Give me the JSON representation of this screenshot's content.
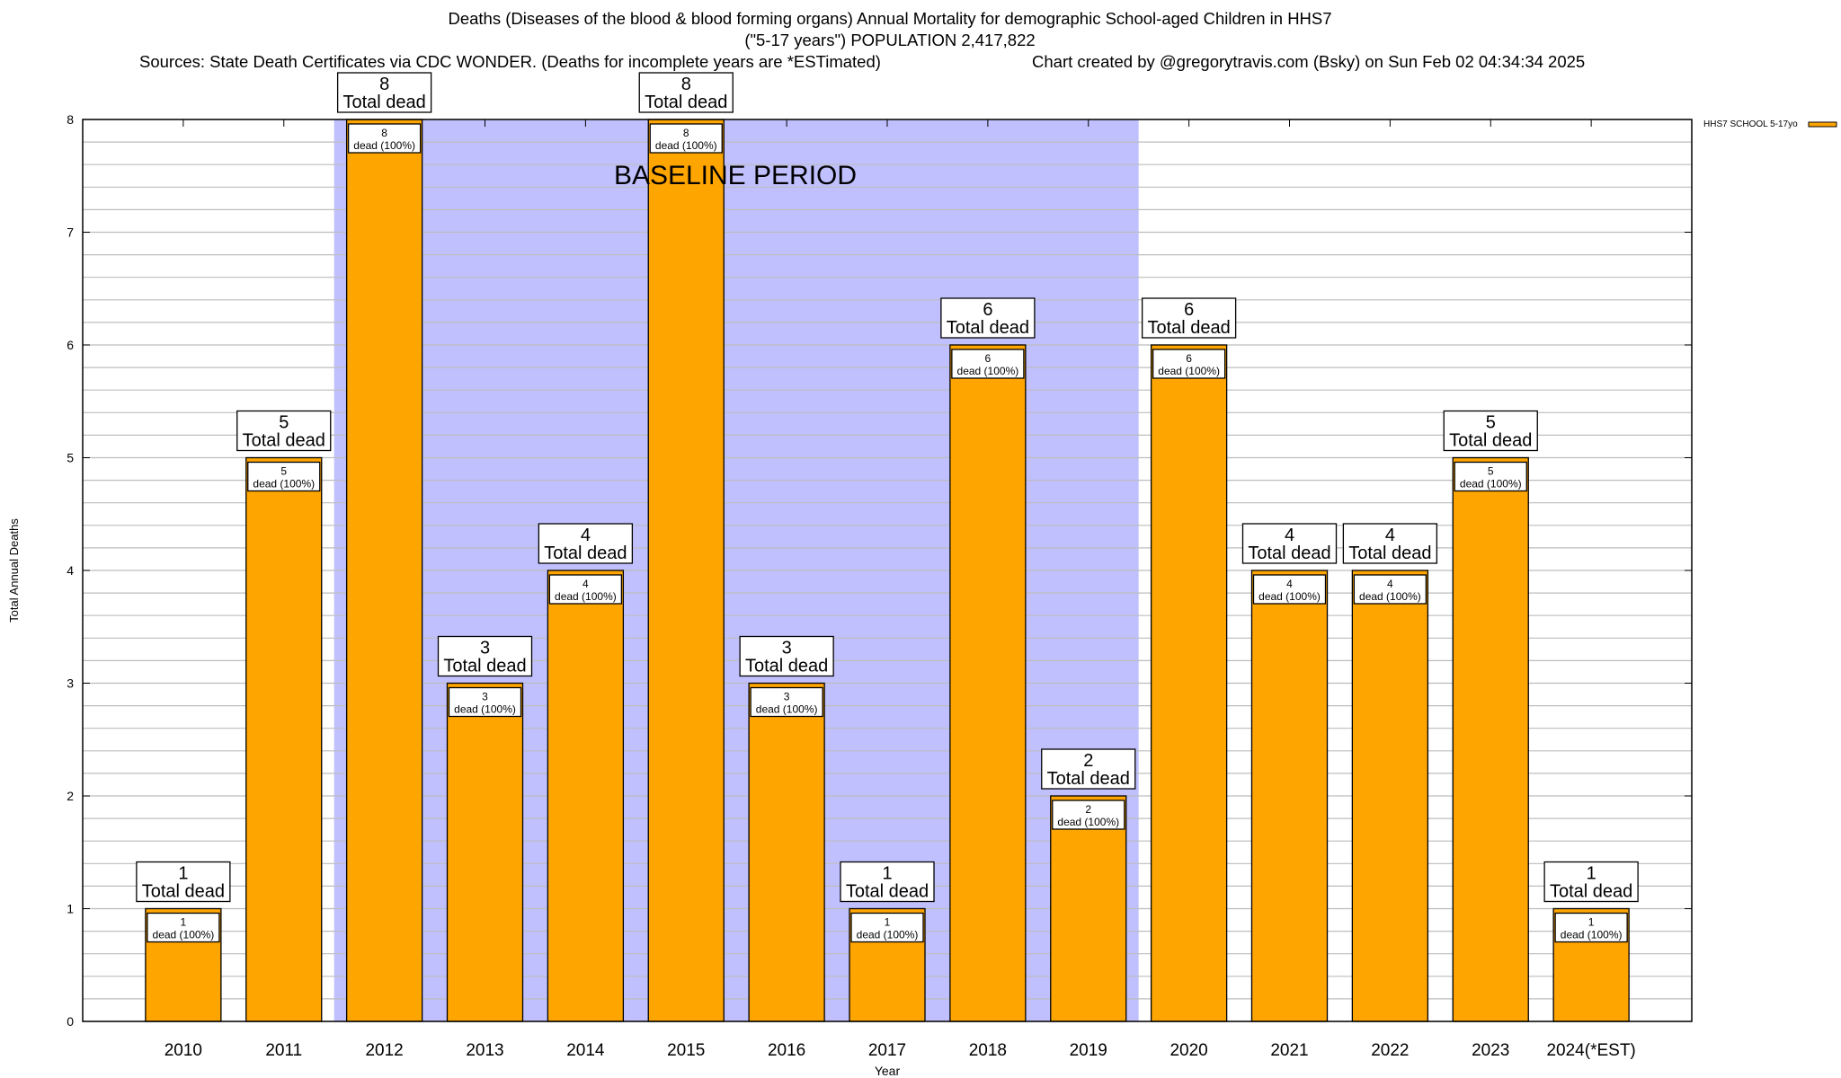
{
  "chart_data": {
    "type": "bar",
    "title_lines": [
      "Deaths (Diseases of the blood & blood forming organs) Annual Mortality for demographic School-aged Children in HHS7",
      "(\"5-17 years\") POPULATION 2,417,822"
    ],
    "sources": "Sources: State Death Certificates via CDC WONDER. (Deaths for incomplete years are *ESTimated)",
    "credit": "Chart created by @gregorytravis.com (Bsky) on Sun Feb 02 04:34:34 2025",
    "xlabel": "Year",
    "ylabel": "Total Annual Deaths",
    "ylim": [
      0,
      8
    ],
    "yticks": [
      0,
      1,
      2,
      3,
      4,
      5,
      6,
      7,
      8
    ],
    "grid": true,
    "legend_placement": "top-right, outside plot",
    "categories": [
      "2010",
      "2011",
      "2012",
      "2013",
      "2014",
      "2015",
      "2016",
      "2017",
      "2018",
      "2019",
      "2020",
      "2021",
      "2022",
      "2023",
      "2024(*EST)"
    ],
    "series": [
      {
        "name": "HHS7 SCHOOL 5-17yo",
        "color": "#ffa500",
        "values": [
          1,
          5,
          8,
          3,
          4,
          8,
          3,
          1,
          6,
          2,
          6,
          4,
          4,
          5,
          1
        ]
      }
    ],
    "top_label_suffix": "Total dead",
    "inner_label_suffix": "dead (100%)",
    "annotation": {
      "text": "BASELINE PERIOD",
      "from": "2012",
      "to": "2019",
      "color": "#c0c0ff"
    }
  }
}
